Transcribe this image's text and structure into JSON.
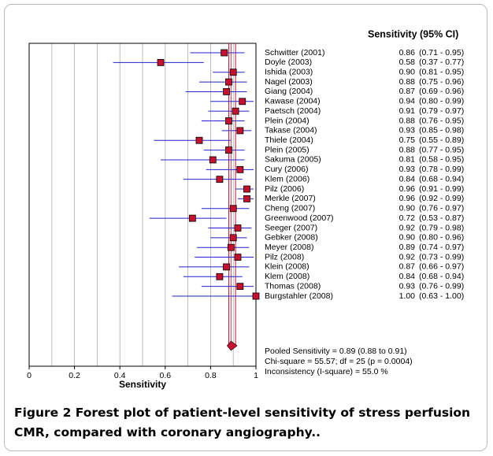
{
  "chart_data": {
    "type": "forest",
    "column_title": "Sensitivity (95% CI)",
    "xlabel": "Sensitivity",
    "xlim": [
      0,
      1
    ],
    "xticks": [
      0,
      0.2,
      0.4,
      0.6,
      0.8,
      1
    ],
    "xgrid": [
      0.1,
      0.2,
      0.3,
      0.4,
      0.5,
      0.6,
      0.7,
      0.8,
      0.9
    ],
    "marker_color": "#c8102e",
    "ci_color": "#2222cc",
    "pooled_color": "#c8102e",
    "categories": [
      "Schwitter (2001)",
      "Doyle (2003)",
      "Ishida (2003)",
      "Nagel (2003)",
      "Giang (2004)",
      "Kawase (2004)",
      "Paetsch (2004)",
      "Plein (2004)",
      "Takase (2004)",
      "Thiele (2004)",
      "Plein (2005)",
      "Sakuma (2005)",
      "Cury (2006)",
      "Klem (2006)",
      "Pilz (2006)",
      "Merkle (2007)",
      "Cheng (2007)",
      "Greenwood (2007)",
      "Seeger (2007)",
      "Gebker (2008)",
      "Meyer (2008)",
      "Pilz (2008)",
      "Klein (2008)",
      "Klem (2008)",
      "Thomas (2008)",
      "Burgstahler (2008)"
    ],
    "values": [
      0.86,
      0.58,
      0.9,
      0.88,
      0.87,
      0.94,
      0.91,
      0.88,
      0.93,
      0.75,
      0.88,
      0.81,
      0.93,
      0.84,
      0.96,
      0.96,
      0.9,
      0.72,
      0.92,
      0.9,
      0.89,
      0.92,
      0.87,
      0.84,
      0.93,
      1.0
    ],
    "value_labels": [
      "0.86",
      "0.58",
      "0.90",
      "0.88",
      "0.87",
      "0.94",
      "0.91",
      "0.88",
      "0.93",
      "0.75",
      "0.88",
      "0.81",
      "0.93",
      "0.84",
      "0.96",
      "0.96",
      "0.90",
      "0.72",
      "0.92",
      "0.90",
      "0.89",
      "0.92",
      "0.87",
      "0.84",
      "0.93",
      "1.00"
    ],
    "lower": [
      0.71,
      0.37,
      0.81,
      0.75,
      0.69,
      0.8,
      0.79,
      0.76,
      0.85,
      0.55,
      0.77,
      0.58,
      0.78,
      0.68,
      0.91,
      0.92,
      0.76,
      0.53,
      0.79,
      0.8,
      0.74,
      0.73,
      0.66,
      0.68,
      0.76,
      0.63
    ],
    "upper": [
      0.95,
      0.77,
      0.95,
      0.96,
      0.96,
      0.99,
      0.97,
      0.95,
      0.98,
      0.89,
      0.95,
      0.95,
      0.99,
      0.94,
      0.99,
      0.99,
      0.97,
      0.87,
      0.98,
      0.96,
      0.97,
      0.99,
      0.97,
      0.94,
      0.99,
      1.0
    ],
    "ci_labels": [
      "(0.71 - 0.95)",
      "(0.37 - 0.77)",
      "(0.81 - 0.95)",
      "(0.75 - 0.96)",
      "(0.69 - 0.96)",
      "(0.80 - 0.99)",
      "(0.79 - 0.97)",
      "(0.76 - 0.95)",
      "(0.85 - 0.98)",
      "(0.55 - 0.89)",
      "(0.77 - 0.95)",
      "(0.58 - 0.95)",
      "(0.78 - 0.99)",
      "(0.68 - 0.94)",
      "(0.91 - 0.99)",
      "(0.92 - 0.99)",
      "(0.76 - 0.97)",
      "(0.53 - 0.87)",
      "(0.79 - 0.98)",
      "(0.80 - 0.96)",
      "(0.74 - 0.97)",
      "(0.73 - 0.99)",
      "(0.66 - 0.97)",
      "(0.68 - 0.94)",
      "(0.76 - 0.99)",
      "(0.63 - 1.00)"
    ],
    "pooled": {
      "value": 0.89,
      "lower": 0.88,
      "upper": 0.91
    },
    "summary_lines": [
      "Pooled Sensitivity = 0.89 (0.88 to 0.91)",
      "Chi-square = 55.57; df =  25 (p = 0.0004)",
      "Inconsistency (I-square) = 55.0 %"
    ]
  },
  "caption": {
    "label": "Figure 2",
    "text": "Forest plot of patient-level sensitivity of stress perfusion CMR, compared with coronary angiography.."
  }
}
